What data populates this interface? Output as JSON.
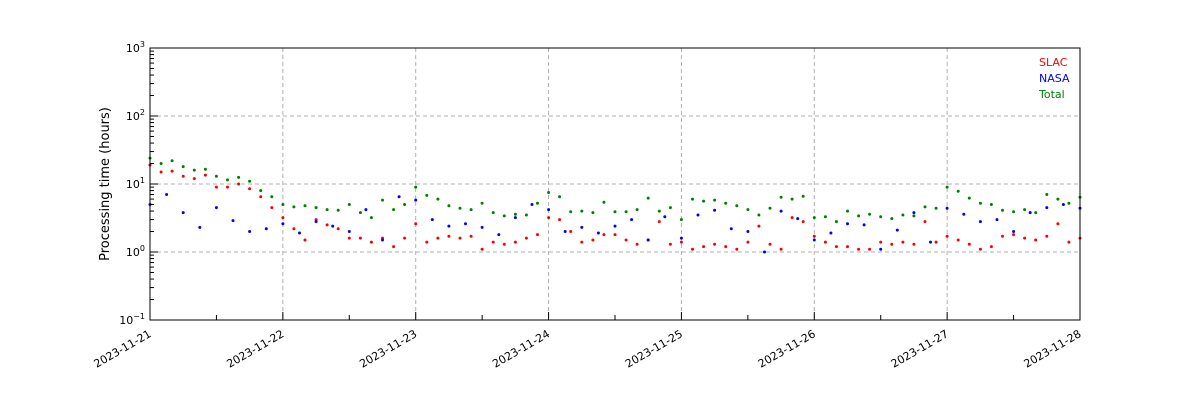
{
  "chart_data": {
    "type": "scatter",
    "title": "",
    "xlabel": "",
    "ylabel": "Processing time (hours)",
    "yscale": "log",
    "ylim": [
      0.1,
      1000
    ],
    "xlim": [
      "2023-11-21",
      "2023-11-28"
    ],
    "x_tick_labels": [
      "2023-11-21",
      "2023-11-22",
      "2023-11-23",
      "2023-11-24",
      "2023-11-25",
      "2023-11-26",
      "2023-11-27",
      "2023-11-28"
    ],
    "y_ticks": [
      {
        "value": 0.1,
        "base": "10",
        "exp": "−1"
      },
      {
        "value": 1,
        "base": "10",
        "exp": "0"
      },
      {
        "value": 10,
        "base": "10",
        "exp": "1"
      },
      {
        "value": 100,
        "base": "10",
        "exp": "2"
      },
      {
        "value": 1000,
        "base": "10",
        "exp": "3"
      }
    ],
    "grid": true,
    "legend_position": "top-right",
    "series": [
      {
        "name": "SLAC",
        "color": "#ff0000",
        "points": [
          [
            "2023-11-21 00:00",
            19.0
          ],
          [
            "2023-11-21 02:00",
            15.0
          ],
          [
            "2023-11-21 04:00",
            15.5
          ],
          [
            "2023-11-21 06:00",
            13.0
          ],
          [
            "2023-11-21 08:00",
            12.0
          ],
          [
            "2023-11-21 10:00",
            13.5
          ],
          [
            "2023-11-21 12:00",
            9.0
          ],
          [
            "2023-11-21 14:00",
            9.0
          ],
          [
            "2023-11-21 16:00",
            10.0
          ],
          [
            "2023-11-21 18:00",
            8.5
          ],
          [
            "2023-11-21 20:00",
            6.5
          ],
          [
            "2023-11-21 22:00",
            4.5
          ],
          [
            "2023-11-22 00:00",
            3.2
          ],
          [
            "2023-11-22 02:00",
            2.2
          ],
          [
            "2023-11-22 04:00",
            1.5
          ],
          [
            "2023-11-22 06:00",
            3.0
          ],
          [
            "2023-11-22 08:00",
            2.5
          ],
          [
            "2023-11-22 10:00",
            2.2
          ],
          [
            "2023-11-22 12:00",
            1.6
          ],
          [
            "2023-11-22 14:00",
            1.6
          ],
          [
            "2023-11-22 16:00",
            1.4
          ],
          [
            "2023-11-22 18:00",
            1.6
          ],
          [
            "2023-11-22 20:00",
            1.2
          ],
          [
            "2023-11-22 22:00",
            1.6
          ],
          [
            "2023-11-23 00:00",
            2.6
          ],
          [
            "2023-11-23 02:00",
            1.4
          ],
          [
            "2023-11-23 04:00",
            1.6
          ],
          [
            "2023-11-23 06:00",
            1.7
          ],
          [
            "2023-11-23 08:00",
            1.6
          ],
          [
            "2023-11-23 10:00",
            1.7
          ],
          [
            "2023-11-23 12:00",
            1.1
          ],
          [
            "2023-11-23 14:00",
            1.4
          ],
          [
            "2023-11-23 16:00",
            1.3
          ],
          [
            "2023-11-23 18:00",
            1.4
          ],
          [
            "2023-11-23 20:00",
            1.6
          ],
          [
            "2023-11-23 22:00",
            1.8
          ],
          [
            "2023-11-24 00:00",
            3.2
          ],
          [
            "2023-11-24 02:00",
            3.0
          ],
          [
            "2023-11-24 04:00",
            2.0
          ],
          [
            "2023-11-24 06:00",
            1.4
          ],
          [
            "2023-11-24 08:00",
            1.5
          ],
          [
            "2023-11-24 10:00",
            1.8
          ],
          [
            "2023-11-24 12:00",
            1.8
          ],
          [
            "2023-11-24 14:00",
            1.5
          ],
          [
            "2023-11-24 16:00",
            1.3
          ],
          [
            "2023-11-24 18:00",
            1.5
          ],
          [
            "2023-11-24 20:00",
            2.8
          ],
          [
            "2023-11-24 22:00",
            1.3
          ],
          [
            "2023-11-25 00:00",
            1.4
          ],
          [
            "2023-11-25 02:00",
            1.1
          ],
          [
            "2023-11-25 04:00",
            1.2
          ],
          [
            "2023-11-25 06:00",
            1.3
          ],
          [
            "2023-11-25 08:00",
            1.2
          ],
          [
            "2023-11-25 10:00",
            1.1
          ],
          [
            "2023-11-25 12:00",
            1.4
          ],
          [
            "2023-11-25 14:00",
            2.4
          ],
          [
            "2023-11-25 16:00",
            1.3
          ],
          [
            "2023-11-25 18:00",
            1.1
          ],
          [
            "2023-11-25 20:00",
            3.2
          ],
          [
            "2023-11-25 22:00",
            2.8
          ],
          [
            "2023-11-26 00:00",
            1.7
          ],
          [
            "2023-11-26 02:00",
            1.4
          ],
          [
            "2023-11-26 04:00",
            1.2
          ],
          [
            "2023-11-26 06:00",
            1.2
          ],
          [
            "2023-11-26 08:00",
            1.1
          ],
          [
            "2023-11-26 10:00",
            1.1
          ],
          [
            "2023-11-26 12:00",
            1.4
          ],
          [
            "2023-11-26 14:00",
            1.3
          ],
          [
            "2023-11-26 16:00",
            1.4
          ],
          [
            "2023-11-26 18:00",
            1.3
          ],
          [
            "2023-11-26 20:00",
            2.8
          ],
          [
            "2023-11-26 22:00",
            1.4
          ],
          [
            "2023-11-27 00:00",
            1.7
          ],
          [
            "2023-11-27 02:00",
            1.5
          ],
          [
            "2023-11-27 04:00",
            1.3
          ],
          [
            "2023-11-27 06:00",
            1.1
          ],
          [
            "2023-11-27 08:00",
            1.2
          ],
          [
            "2023-11-27 10:00",
            1.7
          ],
          [
            "2023-11-27 12:00",
            1.8
          ],
          [
            "2023-11-27 14:00",
            1.6
          ],
          [
            "2023-11-27 16:00",
            1.5
          ],
          [
            "2023-11-27 18:00",
            1.7
          ],
          [
            "2023-11-27 20:00",
            2.6
          ],
          [
            "2023-11-27 22:00",
            1.4
          ],
          [
            "2023-11-28 00:00",
            1.6
          ]
        ]
      },
      {
        "name": "NASA",
        "color": "#0000ff",
        "points": [
          [
            "2023-11-21 00:00",
            5.0
          ],
          [
            "2023-11-21 03:00",
            7.0
          ],
          [
            "2023-11-21 06:00",
            3.8
          ],
          [
            "2023-11-21 09:00",
            2.3
          ],
          [
            "2023-11-21 12:00",
            4.5
          ],
          [
            "2023-11-21 15:00",
            2.9
          ],
          [
            "2023-11-21 18:00",
            2.0
          ],
          [
            "2023-11-21 21:00",
            2.2
          ],
          [
            "2023-11-22 00:00",
            2.6
          ],
          [
            "2023-11-22 03:00",
            1.9
          ],
          [
            "2023-11-22 06:00",
            2.8
          ],
          [
            "2023-11-22 09:00",
            2.4
          ],
          [
            "2023-11-22 12:00",
            2.0
          ],
          [
            "2023-11-22 15:00",
            4.2
          ],
          [
            "2023-11-22 18:00",
            1.5
          ],
          [
            "2023-11-22 21:00",
            6.5
          ],
          [
            "2023-11-23 00:00",
            5.8
          ],
          [
            "2023-11-23 03:00",
            3.0
          ],
          [
            "2023-11-23 06:00",
            2.4
          ],
          [
            "2023-11-23 09:00",
            2.6
          ],
          [
            "2023-11-23 12:00",
            2.3
          ],
          [
            "2023-11-23 15:00",
            1.8
          ],
          [
            "2023-11-23 18:00",
            3.2
          ],
          [
            "2023-11-23 21:00",
            5.0
          ],
          [
            "2023-11-24 00:00",
            4.2
          ],
          [
            "2023-11-24 03:00",
            2.0
          ],
          [
            "2023-11-24 06:00",
            2.3
          ],
          [
            "2023-11-24 09:00",
            1.9
          ],
          [
            "2023-11-24 12:00",
            2.4
          ],
          [
            "2023-11-24 15:00",
            3.0
          ],
          [
            "2023-11-24 18:00",
            1.5
          ],
          [
            "2023-11-24 21:00",
            3.3
          ],
          [
            "2023-11-25 00:00",
            1.6
          ],
          [
            "2023-11-25 03:00",
            3.5
          ],
          [
            "2023-11-25 06:00",
            4.1
          ],
          [
            "2023-11-25 09:00",
            2.2
          ],
          [
            "2023-11-25 12:00",
            2.0
          ],
          [
            "2023-11-25 15:00",
            1.0
          ],
          [
            "2023-11-25 18:00",
            4.0
          ],
          [
            "2023-11-25 21:00",
            3.1
          ],
          [
            "2023-11-26 00:00",
            1.5
          ],
          [
            "2023-11-26 03:00",
            1.9
          ],
          [
            "2023-11-26 06:00",
            2.6
          ],
          [
            "2023-11-26 09:00",
            2.5
          ],
          [
            "2023-11-26 12:00",
            1.1
          ],
          [
            "2023-11-26 15:00",
            2.1
          ],
          [
            "2023-11-26 18:00",
            3.8
          ],
          [
            "2023-11-26 21:00",
            1.4
          ],
          [
            "2023-11-27 00:00",
            4.4
          ],
          [
            "2023-11-27 03:00",
            3.6
          ],
          [
            "2023-11-27 06:00",
            2.8
          ],
          [
            "2023-11-27 09:00",
            3.0
          ],
          [
            "2023-11-27 12:00",
            2.0
          ],
          [
            "2023-11-27 15:00",
            3.8
          ],
          [
            "2023-11-27 18:00",
            4.5
          ],
          [
            "2023-11-27 21:00",
            5.0
          ],
          [
            "2023-11-28 00:00",
            4.4
          ]
        ]
      },
      {
        "name": "Total",
        "color": "#008000",
        "points": [
          [
            "2023-11-21 00:00",
            24.0
          ],
          [
            "2023-11-21 02:00",
            20.0
          ],
          [
            "2023-11-21 04:00",
            22.0
          ],
          [
            "2023-11-21 06:00",
            18.0
          ],
          [
            "2023-11-21 08:00",
            16.0
          ],
          [
            "2023-11-21 10:00",
            16.5
          ],
          [
            "2023-11-21 12:00",
            13.0
          ],
          [
            "2023-11-21 14:00",
            11.5
          ],
          [
            "2023-11-21 16:00",
            12.5
          ],
          [
            "2023-11-21 18:00",
            11.0
          ],
          [
            "2023-11-21 20:00",
            8.0
          ],
          [
            "2023-11-21 22:00",
            6.5
          ],
          [
            "2023-11-22 00:00",
            5.0
          ],
          [
            "2023-11-22 02:00",
            4.6
          ],
          [
            "2023-11-22 04:00",
            4.8
          ],
          [
            "2023-11-22 06:00",
            4.5
          ],
          [
            "2023-11-22 08:00",
            4.2
          ],
          [
            "2023-11-22 10:00",
            4.1
          ],
          [
            "2023-11-22 12:00",
            5.0
          ],
          [
            "2023-11-22 14:00",
            3.8
          ],
          [
            "2023-11-22 16:00",
            3.2
          ],
          [
            "2023-11-22 18:00",
            5.8
          ],
          [
            "2023-11-22 20:00",
            4.2
          ],
          [
            "2023-11-22 22:00",
            5.0
          ],
          [
            "2023-11-23 00:00",
            9.0
          ],
          [
            "2023-11-23 02:00",
            6.8
          ],
          [
            "2023-11-23 04:00",
            6.0
          ],
          [
            "2023-11-23 06:00",
            4.8
          ],
          [
            "2023-11-23 08:00",
            4.4
          ],
          [
            "2023-11-23 10:00",
            4.2
          ],
          [
            "2023-11-23 12:00",
            5.2
          ],
          [
            "2023-11-23 14:00",
            3.8
          ],
          [
            "2023-11-23 16:00",
            3.4
          ],
          [
            "2023-11-23 18:00",
            3.6
          ],
          [
            "2023-11-23 20:00",
            3.5
          ],
          [
            "2023-11-23 22:00",
            5.2
          ],
          [
            "2023-11-24 00:00",
            7.5
          ],
          [
            "2023-11-24 02:00",
            6.5
          ],
          [
            "2023-11-24 04:00",
            3.9
          ],
          [
            "2023-11-24 06:00",
            4.0
          ],
          [
            "2023-11-24 08:00",
            3.8
          ],
          [
            "2023-11-24 10:00",
            5.4
          ],
          [
            "2023-11-24 12:00",
            3.9
          ],
          [
            "2023-11-24 14:00",
            3.9
          ],
          [
            "2023-11-24 16:00",
            4.2
          ],
          [
            "2023-11-24 18:00",
            6.2
          ],
          [
            "2023-11-24 20:00",
            4.0
          ],
          [
            "2023-11-24 22:00",
            4.5
          ],
          [
            "2023-11-25 00:00",
            3.0
          ],
          [
            "2023-11-25 02:00",
            6.0
          ],
          [
            "2023-11-25 04:00",
            5.6
          ],
          [
            "2023-11-25 06:00",
            5.8
          ],
          [
            "2023-11-25 08:00",
            5.2
          ],
          [
            "2023-11-25 10:00",
            4.8
          ],
          [
            "2023-11-25 12:00",
            4.2
          ],
          [
            "2023-11-25 14:00",
            3.5
          ],
          [
            "2023-11-25 16:00",
            4.4
          ],
          [
            "2023-11-25 18:00",
            6.4
          ],
          [
            "2023-11-25 20:00",
            6.0
          ],
          [
            "2023-11-25 22:00",
            6.6
          ],
          [
            "2023-11-26 00:00",
            3.2
          ],
          [
            "2023-11-26 02:00",
            3.3
          ],
          [
            "2023-11-26 04:00",
            2.8
          ],
          [
            "2023-11-26 06:00",
            4.0
          ],
          [
            "2023-11-26 08:00",
            3.4
          ],
          [
            "2023-11-26 10:00",
            3.6
          ],
          [
            "2023-11-26 12:00",
            3.3
          ],
          [
            "2023-11-26 14:00",
            3.1
          ],
          [
            "2023-11-26 16:00",
            3.5
          ],
          [
            "2023-11-26 18:00",
            3.4
          ],
          [
            "2023-11-26 20:00",
            4.6
          ],
          [
            "2023-11-26 22:00",
            4.4
          ],
          [
            "2023-11-27 00:00",
            9.0
          ],
          [
            "2023-11-27 02:00",
            7.8
          ],
          [
            "2023-11-27 04:00",
            6.2
          ],
          [
            "2023-11-27 06:00",
            5.2
          ],
          [
            "2023-11-27 08:00",
            5.0
          ],
          [
            "2023-11-27 10:00",
            4.1
          ],
          [
            "2023-11-27 12:00",
            3.9
          ],
          [
            "2023-11-27 14:00",
            4.2
          ],
          [
            "2023-11-27 16:00",
            3.8
          ],
          [
            "2023-11-27 18:00",
            7.0
          ],
          [
            "2023-11-27 20:00",
            6.0
          ],
          [
            "2023-11-27 22:00",
            5.2
          ],
          [
            "2023-11-28 00:00",
            6.4
          ]
        ]
      }
    ]
  }
}
